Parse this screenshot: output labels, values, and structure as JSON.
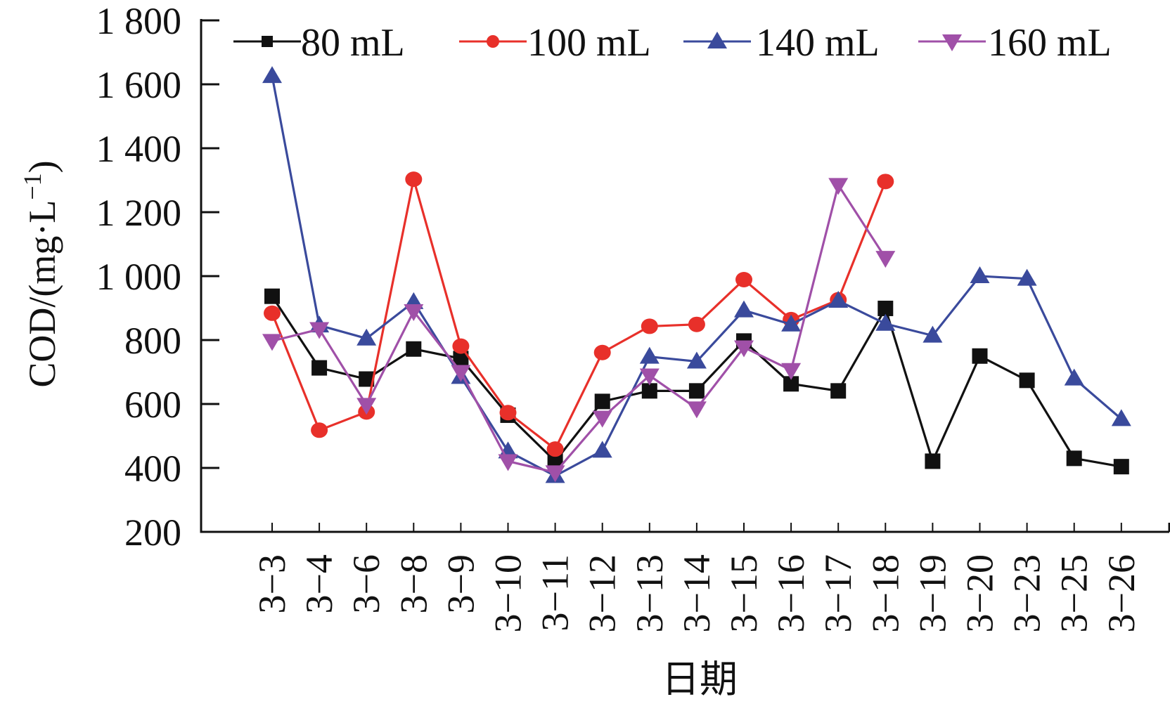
{
  "chart_data": {
    "type": "line",
    "title": "",
    "xlabel": "日期",
    "ylabel": "COD/(mg·L",
    "ylabel_sup": "−1",
    "ylabel_close": ")",
    "ylim": [
      200,
      1800
    ],
    "yticks": [
      200,
      400,
      600,
      800,
      1000,
      1200,
      1400,
      1600,
      1800
    ],
    "ytick_labels": [
      "200",
      "400",
      "600",
      "800",
      "1 000",
      "1 200",
      "1 400",
      "1 600",
      "1 800"
    ],
    "categories": [
      "3−3",
      "3−4",
      "3−6",
      "3−8",
      "3−9",
      "3−10",
      "3−11",
      "3−12",
      "3−13",
      "3−14",
      "3−15",
      "3−16",
      "3−17",
      "3−18",
      "3−19",
      "3−20",
      "3−23",
      "3−25",
      "3−26"
    ],
    "grid": false,
    "legend_position": "top",
    "series": [
      {
        "name": "80 mL",
        "color": "#111111",
        "marker": "square",
        "values": [
          937,
          713,
          678,
          772,
          742,
          565,
          421,
          608,
          641,
          641,
          797,
          663,
          641,
          899,
          421,
          750,
          674,
          430,
          404
        ]
      },
      {
        "name": "100 mL",
        "color": "#e8302a",
        "marker": "circle",
        "values": [
          884,
          518,
          575,
          1303,
          781,
          573,
          459,
          761,
          843,
          849,
          989,
          864,
          926,
          1296,
          null,
          null,
          null,
          null,
          null
        ]
      },
      {
        "name": "140 mL",
        "color": "#3a4a9c",
        "marker": "triangle-up",
        "values": [
          1626,
          846,
          805,
          919,
          685,
          452,
          375,
          454,
          748,
          733,
          893,
          849,
          923,
          851,
          814,
          1000,
          992,
          680,
          553
        ]
      },
      {
        "name": "160 mL",
        "color": "#a050a8",
        "marker": "triangle-down",
        "values": [
          797,
          834,
          597,
          890,
          700,
          421,
          386,
          557,
          689,
          586,
          777,
          706,
          1285,
          1057,
          null,
          null,
          null,
          null,
          null
        ]
      }
    ]
  }
}
